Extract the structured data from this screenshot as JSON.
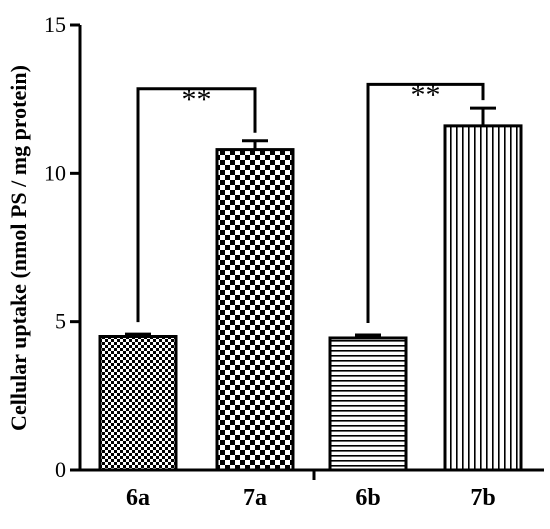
{
  "chart_data": {
    "type": "bar",
    "title": "",
    "xlabel": "",
    "ylabel": "Cellular uptake (nmol PS / mg protein)",
    "ylim": [
      0,
      15
    ],
    "yticks": [
      0,
      5,
      10,
      15
    ],
    "grid": false,
    "categories": [
      "6a",
      "7a",
      "6b",
      "7b"
    ],
    "values": [
      4.5,
      10.8,
      4.45,
      11.6
    ],
    "errors": [
      0.08,
      0.3,
      0.1,
      0.6
    ],
    "patterns": [
      "fine-checker",
      "coarse-checker",
      "horizontal-lines",
      "vertical-lines"
    ],
    "significance": [
      {
        "from": "6a",
        "to": "7a",
        "label": "**"
      },
      {
        "from": "6b",
        "to": "7b",
        "label": "**"
      }
    ]
  }
}
